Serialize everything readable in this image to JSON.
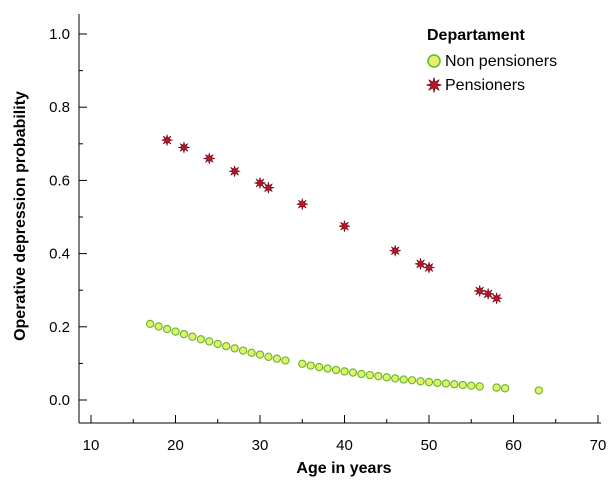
{
  "chart_data": {
    "type": "scatter",
    "xlabel": "Age in years",
    "ylabel": "Operative depression probability",
    "xlim": [
      10,
      70
    ],
    "ylim": [
      0.0,
      1.0
    ],
    "x_ticks": [
      "10",
      "20",
      "30",
      "40",
      "50",
      "60",
      "70"
    ],
    "y_ticks": [
      "0.0",
      "0.2",
      "0.4",
      "0.6",
      "0.8",
      "1.0"
    ],
    "grid": false,
    "legend": {
      "title": "Departament",
      "placement": "top-right",
      "entries": [
        "Non pensioners",
        "Pensioners"
      ]
    },
    "series": [
      {
        "name": "Non pensioners",
        "marker": "circle",
        "fill": "#e6f06a",
        "stroke": "#5fb82a",
        "points": [
          [
            17,
            0.208
          ],
          [
            18,
            0.201
          ],
          [
            19,
            0.194
          ],
          [
            20,
            0.187
          ],
          [
            21,
            0.18
          ],
          [
            22,
            0.173
          ],
          [
            23,
            0.166
          ],
          [
            24,
            0.16
          ],
          [
            25,
            0.153
          ],
          [
            26,
            0.147
          ],
          [
            27,
            0.141
          ],
          [
            28,
            0.135
          ],
          [
            29,
            0.129
          ],
          [
            30,
            0.124
          ],
          [
            31,
            0.118
          ],
          [
            32,
            0.113
          ],
          [
            33,
            0.108
          ],
          [
            35,
            0.099
          ],
          [
            36,
            0.094
          ],
          [
            37,
            0.09
          ],
          [
            38,
            0.086
          ],
          [
            39,
            0.082
          ],
          [
            40,
            0.078
          ],
          [
            41,
            0.075
          ],
          [
            42,
            0.071
          ],
          [
            43,
            0.068
          ],
          [
            44,
            0.065
          ],
          [
            45,
            0.062
          ],
          [
            46,
            0.059
          ],
          [
            47,
            0.056
          ],
          [
            48,
            0.054
          ],
          [
            49,
            0.051
          ],
          [
            50,
            0.049
          ],
          [
            51,
            0.047
          ],
          [
            52,
            0.045
          ],
          [
            53,
            0.043
          ],
          [
            54,
            0.041
          ],
          [
            55,
            0.039
          ],
          [
            56,
            0.037
          ],
          [
            58,
            0.034
          ],
          [
            59,
            0.032
          ],
          [
            63,
            0.026
          ]
        ]
      },
      {
        "name": "Pensioners",
        "marker": "star",
        "fill": "#c0152b",
        "stroke": "#6a0a14",
        "points": [
          [
            19,
            0.71
          ],
          [
            21,
            0.69
          ],
          [
            24,
            0.66
          ],
          [
            27,
            0.625
          ],
          [
            30,
            0.593
          ],
          [
            31,
            0.58
          ],
          [
            35,
            0.535
          ],
          [
            40,
            0.475
          ],
          [
            46,
            0.408
          ],
          [
            49,
            0.372
          ],
          [
            50,
            0.362
          ],
          [
            56,
            0.298
          ],
          [
            57,
            0.29
          ],
          [
            58,
            0.278
          ]
        ]
      }
    ]
  }
}
